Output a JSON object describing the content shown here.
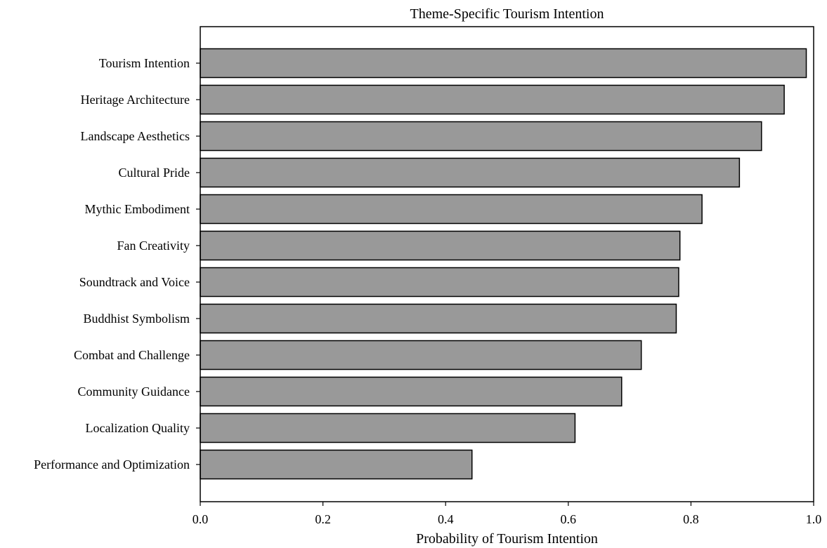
{
  "chart_data": {
    "type": "bar",
    "orientation": "horizontal",
    "title": "Theme-Specific Tourism Intention",
    "xlabel": "Probability of Tourism Intention",
    "ylabel": "",
    "xlim": [
      0.0,
      1.0
    ],
    "xticks": [
      "0.0",
      "0.2",
      "0.4",
      "0.6",
      "0.8",
      "1.0"
    ],
    "categories": [
      "Tourism Intention",
      "Heritage Architecture",
      "Landscape Aesthetics",
      "Cultural Pride",
      "Mythic Embodiment",
      "Fan Creativity",
      "Soundtrack and Voice",
      "Buddhist Symbolism",
      "Combat and Challenge",
      "Community Guidance",
      "Localization Quality",
      "Performance and Optimization"
    ],
    "values": [
      0.988,
      0.952,
      0.915,
      0.879,
      0.818,
      0.782,
      0.78,
      0.776,
      0.719,
      0.687,
      0.611,
      0.443
    ],
    "grid": false,
    "legend": "none",
    "bar_color": "#999999",
    "bar_edge_color": "#000000"
  }
}
